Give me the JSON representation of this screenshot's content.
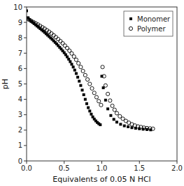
{
  "chart_data": {
    "type": "scatter",
    "x_label": "Equivalents of 0.05 N HCl",
    "y_label": "pH",
    "xlim": [
      0,
      2.0
    ],
    "ylim": [
      0,
      10
    ],
    "xticks": [
      {
        "value": 0,
        "label": "0.0"
      },
      0.5,
      {
        "value": 1.0,
        "label": "1.0"
      },
      1.5,
      {
        "value": 2.0,
        "label": "2.0"
      }
    ],
    "yticks": [
      0,
      1,
      2,
      3,
      4,
      5,
      6,
      7,
      8,
      9,
      10
    ],
    "grid": false,
    "legend": "upper right",
    "series": [
      {
        "name": "Monomer",
        "color": "black",
        "marker": "square",
        "x": [
          0.0,
          0.02,
          0.04,
          0.06,
          0.08,
          0.1,
          0.12,
          0.14,
          0.16,
          0.18,
          0.2,
          0.22,
          0.24,
          0.26,
          0.28,
          0.3,
          0.32,
          0.34,
          0.36,
          0.38,
          0.4,
          0.42,
          0.44,
          0.46,
          0.48,
          0.5,
          0.52,
          0.54,
          0.56,
          0.58,
          0.6,
          0.62,
          0.64,
          0.66,
          0.68,
          0.7,
          0.72,
          0.74,
          0.76,
          0.78,
          0.8,
          0.82,
          0.84,
          0.86,
          0.88,
          0.9,
          0.92,
          0.94,
          0.96,
          0.98,
          1.0,
          1.02,
          1.05,
          1.08,
          1.12,
          1.16,
          1.2,
          1.25,
          1.3,
          1.35,
          1.4,
          1.45,
          1.5,
          1.55,
          1.6,
          1.65
        ],
        "values": [
          9.75,
          9.3,
          9.18,
          9.08,
          9.0,
          8.92,
          8.84,
          8.76,
          8.68,
          8.6,
          8.52,
          8.44,
          8.35,
          8.26,
          8.17,
          8.08,
          7.99,
          7.9,
          7.8,
          7.7,
          7.6,
          7.49,
          7.38,
          7.27,
          7.15,
          7.03,
          6.9,
          6.76,
          6.61,
          6.45,
          6.28,
          6.1,
          5.9,
          5.68,
          5.44,
          5.18,
          4.9,
          4.6,
          4.3,
          4.0,
          3.72,
          3.46,
          3.24,
          3.04,
          2.86,
          2.72,
          2.6,
          2.5,
          2.42,
          2.35,
          5.5,
          4.75,
          3.95,
          3.38,
          2.95,
          2.7,
          2.52,
          2.38,
          2.28,
          2.22,
          2.16,
          2.12,
          2.09,
          2.06,
          2.04,
          2.02
        ]
      },
      {
        "name": "Polymer",
        "color": "black",
        "marker": "circle-open",
        "x": [
          0.0,
          0.03,
          0.06,
          0.09,
          0.12,
          0.15,
          0.18,
          0.21,
          0.24,
          0.27,
          0.3,
          0.33,
          0.36,
          0.39,
          0.42,
          0.45,
          0.48,
          0.51,
          0.54,
          0.57,
          0.6,
          0.63,
          0.66,
          0.69,
          0.72,
          0.75,
          0.78,
          0.81,
          0.84,
          0.87,
          0.9,
          0.93,
          0.96,
          0.99,
          1.01,
          1.03,
          1.05,
          1.08,
          1.11,
          1.14,
          1.17,
          1.2,
          1.24,
          1.28,
          1.32,
          1.36,
          1.4,
          1.44,
          1.48,
          1.52,
          1.56,
          1.6,
          1.64,
          1.68
        ],
        "values": [
          9.25,
          9.18,
          9.1,
          9.02,
          8.94,
          8.86,
          8.77,
          8.68,
          8.59,
          8.49,
          8.39,
          8.28,
          8.16,
          8.04,
          7.91,
          7.78,
          7.64,
          7.49,
          7.33,
          7.16,
          6.98,
          6.78,
          6.57,
          6.34,
          6.1,
          5.84,
          5.57,
          5.29,
          5.0,
          4.71,
          4.42,
          4.14,
          3.88,
          3.63,
          6.1,
          5.5,
          4.9,
          4.35,
          3.92,
          3.58,
          3.32,
          3.1,
          2.9,
          2.74,
          2.6,
          2.48,
          2.38,
          2.3,
          2.24,
          2.2,
          2.16,
          2.13,
          2.11,
          2.09
        ]
      }
    ]
  }
}
